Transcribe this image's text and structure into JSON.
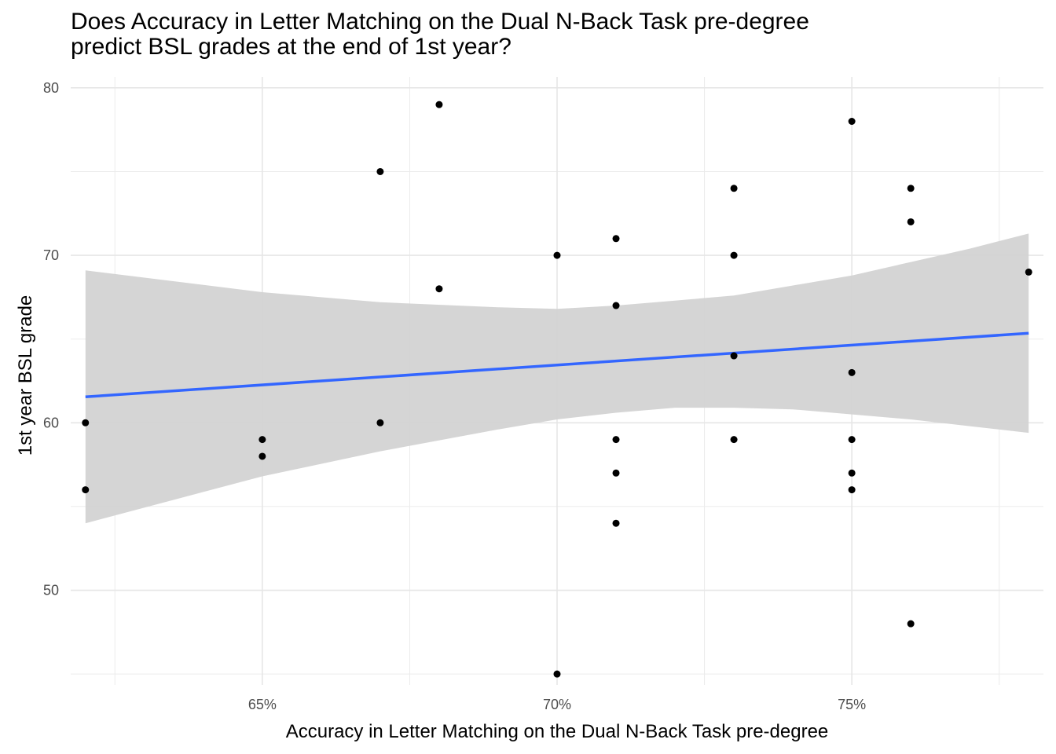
{
  "chart_data": {
    "type": "scatter",
    "title_lines": [
      "Does Accuracy in Letter Matching on the Dual N-Back Task pre-degree",
      "predict BSL grades at the end of 1st year?"
    ],
    "xlabel": "Accuracy in Letter Matching on the Dual N-Back Task pre-degree",
    "ylabel": "1st year BSL grade",
    "xlim": [
      0.6175,
      0.7825
    ],
    "ylim": [
      44.35,
      80.65
    ],
    "x_ticks": [
      0.65,
      0.7,
      0.75
    ],
    "x_tick_labels": [
      "65%",
      "70%",
      "75%"
    ],
    "y_ticks": [
      50,
      60,
      70,
      80
    ],
    "y_tick_labels": [
      "50",
      "60",
      "70",
      "80"
    ],
    "grid": true,
    "point_color": "#000000",
    "fit_line_color": "#3366ff",
    "ribbon_color": "#d3d3d3",
    "points": [
      {
        "x": 0.62,
        "y": 60
      },
      {
        "x": 0.62,
        "y": 56
      },
      {
        "x": 0.65,
        "y": 59
      },
      {
        "x": 0.65,
        "y": 58
      },
      {
        "x": 0.67,
        "y": 75
      },
      {
        "x": 0.67,
        "y": 60
      },
      {
        "x": 0.68,
        "y": 79
      },
      {
        "x": 0.68,
        "y": 68
      },
      {
        "x": 0.7,
        "y": 70
      },
      {
        "x": 0.7,
        "y": 45
      },
      {
        "x": 0.71,
        "y": 71
      },
      {
        "x": 0.71,
        "y": 67
      },
      {
        "x": 0.71,
        "y": 59
      },
      {
        "x": 0.71,
        "y": 57
      },
      {
        "x": 0.71,
        "y": 54
      },
      {
        "x": 0.73,
        "y": 74
      },
      {
        "x": 0.73,
        "y": 70
      },
      {
        "x": 0.73,
        "y": 64
      },
      {
        "x": 0.73,
        "y": 59
      },
      {
        "x": 0.75,
        "y": 78
      },
      {
        "x": 0.75,
        "y": 63
      },
      {
        "x": 0.75,
        "y": 59
      },
      {
        "x": 0.75,
        "y": 57
      },
      {
        "x": 0.75,
        "y": 56
      },
      {
        "x": 0.76,
        "y": 74
      },
      {
        "x": 0.76,
        "y": 72
      },
      {
        "x": 0.76,
        "y": 48
      },
      {
        "x": 0.78,
        "y": 69
      }
    ],
    "fit_line": [
      {
        "x": 0.62,
        "y": 61.55
      },
      {
        "x": 0.78,
        "y": 65.35
      }
    ],
    "ribbon": [
      {
        "x": 0.62,
        "lo": 54.0,
        "hi": 69.1
      },
      {
        "x": 0.65,
        "lo": 56.8,
        "hi": 67.8
      },
      {
        "x": 0.67,
        "lo": 58.3,
        "hi": 67.2
      },
      {
        "x": 0.69,
        "lo": 59.6,
        "hi": 66.9
      },
      {
        "x": 0.7,
        "lo": 60.2,
        "hi": 66.8
      },
      {
        "x": 0.71,
        "lo": 60.6,
        "hi": 67.0
      },
      {
        "x": 0.72,
        "lo": 60.9,
        "hi": 67.3
      },
      {
        "x": 0.73,
        "lo": 60.9,
        "hi": 67.6
      },
      {
        "x": 0.74,
        "lo": 60.8,
        "hi": 68.2
      },
      {
        "x": 0.75,
        "lo": 60.5,
        "hi": 68.8
      },
      {
        "x": 0.76,
        "lo": 60.2,
        "hi": 69.6
      },
      {
        "x": 0.77,
        "lo": 59.8,
        "hi": 70.4
      },
      {
        "x": 0.78,
        "lo": 59.4,
        "hi": 71.3
      }
    ]
  }
}
